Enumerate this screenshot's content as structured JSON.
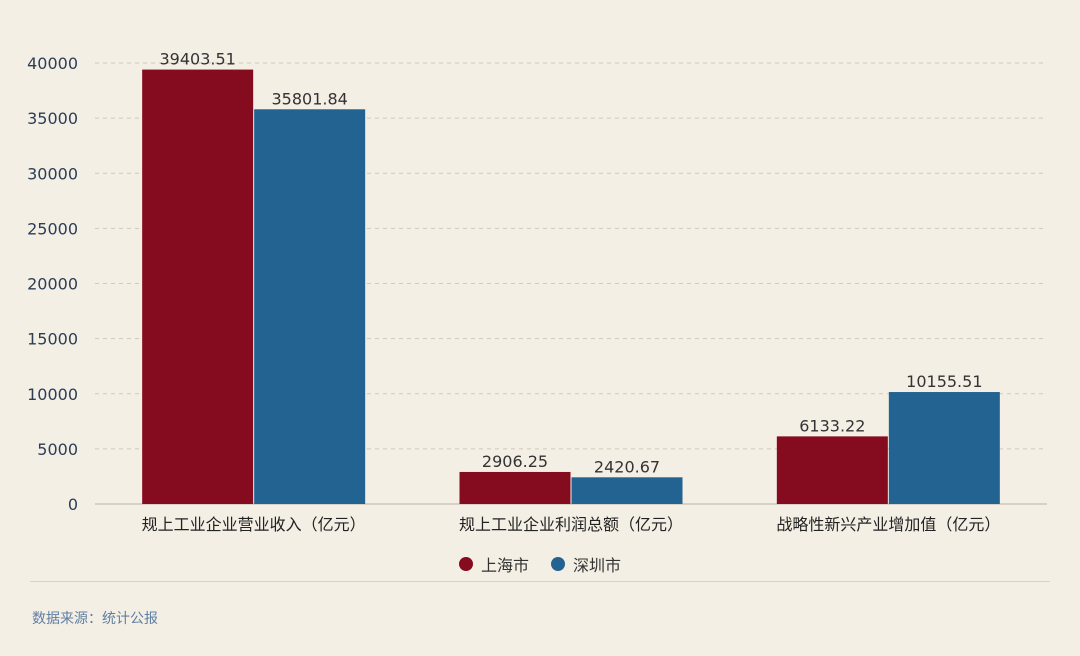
{
  "chart_data": {
    "type": "bar",
    "categories": [
      "规上工业企业营业收入（亿元）",
      "规上工业企业利润总额（亿元）",
      "战略性新兴产业增加值（亿元）"
    ],
    "series": [
      {
        "name": "上海市",
        "color": "#850b1e",
        "values": [
          39403.51,
          2906.25,
          6133.22
        ],
        "labels": [
          "39403.51",
          "2906.25",
          "6133.22"
        ]
      },
      {
        "name": "深圳市",
        "color": "#226391",
        "values": [
          35801.84,
          2420.67,
          10155.51
        ],
        "labels": [
          "35801.84",
          "2420.67",
          "10155.51"
        ]
      }
    ],
    "ylim": [
      0,
      40000
    ],
    "yticks": [
      0,
      5000,
      10000,
      15000,
      20000,
      25000,
      30000,
      35000,
      40000
    ],
    "grid": true,
    "legend_position": "bottom"
  },
  "footer": {
    "source": "数据来源：统计公报"
  }
}
